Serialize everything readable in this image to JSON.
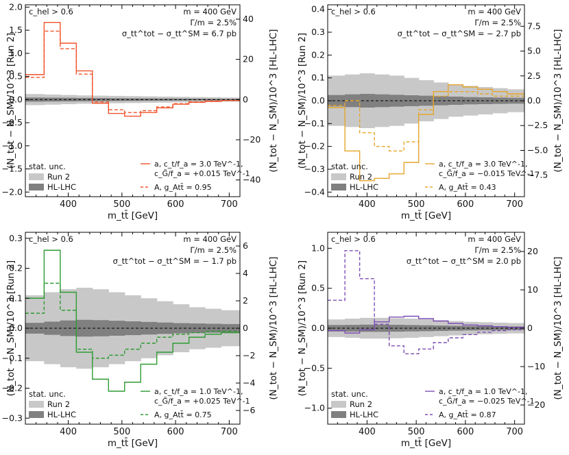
{
  "figure": {
    "x_axis_label": "m_tt̄ [GeV]",
    "y_label_left": "(N_tot − N_SM)/10^3  [Run 2]",
    "y_label_right": "(N_tot − N_SM)/10^3  [HL-LHC]",
    "stat_unc_label": "stat. unc.",
    "run2_label": "Run 2",
    "hllhc_label": "HL-LHC",
    "colors": {
      "run2_band": "#c8c8c8",
      "hllhc_band": "#808080"
    }
  },
  "chart_data": [
    {
      "type": "step",
      "panel": "top-left",
      "cut_label": "c_hel > 0.6",
      "info": [
        "m = 400 GeV",
        "Γ/m = 2.5%",
        "σ_tt^tot − σ_tt^SM = 6.7 pb"
      ],
      "color": "#f0522a",
      "xlim": [
        320,
        720
      ],
      "ylim_left": [
        -2.1,
        2.05
      ],
      "left_ticks": [
        -2.0,
        -1.5,
        -1.0,
        -0.5,
        0.0,
        0.5,
        1.0,
        1.5,
        2.0
      ],
      "ylim_right": [
        -48.3,
        47.15
      ],
      "right_ticks": [
        -40,
        -20,
        0,
        20,
        40
      ],
      "bin_edges": [
        320,
        355,
        385,
        415,
        445,
        475,
        505,
        535,
        565,
        595,
        625,
        655,
        685,
        720
      ],
      "series": [
        {
          "name": "a, c_t/f_a = 3.0 TeV^-1, c_G̃/f_a = +0.015 TeV^-1",
          "style": "solid",
          "values": [
            0.54,
            1.67,
            1.22,
            0.62,
            -0.08,
            -0.3,
            -0.36,
            -0.28,
            -0.18,
            -0.1,
            -0.06,
            -0.04,
            -0.02
          ]
        },
        {
          "name": "A, g_Att̄ = 0.95",
          "style": "dashed",
          "values": [
            0.48,
            1.48,
            1.1,
            0.55,
            -0.05,
            -0.22,
            -0.28,
            -0.24,
            -0.16,
            -0.09,
            -0.05,
            -0.03,
            -0.02
          ]
        }
      ],
      "run2_band": [
        0.12,
        0.11,
        0.1,
        0.09,
        0.085,
        0.08,
        0.075,
        0.07,
        0.065,
        0.06,
        0.055,
        0.05,
        0.045
      ],
      "hllhc_band": [
        0.045,
        0.042,
        0.039,
        0.036,
        0.033,
        0.03,
        0.028,
        0.026,
        0.024,
        0.022,
        0.02,
        0.018,
        0.016
      ],
      "legend_position": "bottom"
    },
    {
      "type": "step",
      "panel": "top-right",
      "cut_label": "c_hel > 0.6",
      "info": [
        "m = 400 GeV",
        "Γ/m = 2.5%",
        "σ_tt^tot − σ_tt^SM = − 2.7 pb"
      ],
      "color": "#e6a52b",
      "xlim": [
        320,
        720
      ],
      "ylim_left": [
        -0.42,
        0.42
      ],
      "left_ticks": [
        -0.4,
        -0.3,
        -0.2,
        -0.1,
        0.0,
        0.1,
        0.2,
        0.3,
        0.4
      ],
      "ylim_right": [
        -9.66,
        9.66
      ],
      "right_ticks": [
        -7.5,
        -5.0,
        -2.5,
        0.0,
        2.5,
        5.0,
        7.5
      ],
      "bin_edges": [
        320,
        355,
        385,
        415,
        445,
        475,
        505,
        535,
        565,
        595,
        625,
        655,
        685,
        720
      ],
      "series": [
        {
          "name": "a, c_t/f_a = 3.0 TeV^-1, c_G̃/f_a = −0.015 TeV^-1",
          "style": "solid",
          "values": [
            -0.03,
            -0.22,
            -0.35,
            -0.34,
            -0.32,
            -0.27,
            -0.06,
            0.04,
            0.07,
            0.06,
            0.05,
            0.04,
            0.03
          ]
        },
        {
          "name": "A, g_Att̄ = 0.43",
          "style": "dashed",
          "values": [
            -0.02,
            0.0,
            -0.14,
            -0.2,
            -0.22,
            -0.18,
            -0.04,
            0.02,
            0.04,
            0.04,
            0.03,
            0.02,
            0.02
          ]
        }
      ],
      "run2_band": [
        0.11,
        0.115,
        0.12,
        0.115,
        0.11,
        0.1,
        0.09,
        0.08,
        0.07,
        0.065,
        0.06,
        0.055,
        0.05
      ],
      "hllhc_band": [
        0.025,
        0.028,
        0.03,
        0.028,
        0.026,
        0.024,
        0.022,
        0.02,
        0.018,
        0.016,
        0.015,
        0.014,
        0.013
      ],
      "legend_position": "bottom"
    },
    {
      "type": "step",
      "panel": "bottom-left",
      "cut_label": "c_hel > 0.6",
      "info": [
        "m = 400 GeV",
        "Γ/m = 2.5%",
        "σ_tt^tot − σ_tt^SM = − 1.7 pb"
      ],
      "color": "#2e9b32",
      "xlim": [
        320,
        720
      ],
      "ylim_left": [
        -0.32,
        0.32
      ],
      "left_ticks": [
        -0.3,
        -0.2,
        -0.1,
        0.0,
        0.1,
        0.2,
        0.3
      ],
      "ylim_right": [
        -7.0,
        7.0
      ],
      "right_ticks": [
        -6,
        -4,
        -2,
        0,
        2,
        4,
        6
      ],
      "bin_edges": [
        320,
        355,
        385,
        415,
        445,
        475,
        505,
        535,
        565,
        595,
        625,
        655,
        685,
        720
      ],
      "series": [
        {
          "name": "a, c_t/f_a = 1.0 TeV^-1, c_G̃/f_a = +0.025 TeV^-1",
          "style": "solid",
          "values": [
            0.1,
            0.26,
            0.12,
            -0.08,
            -0.17,
            -0.21,
            -0.18,
            -0.12,
            -0.08,
            -0.05,
            -0.03,
            -0.02,
            -0.015
          ]
        },
        {
          "name": "A, g_Att̄ = 0.75",
          "style": "dashed",
          "values": [
            0.05,
            0.15,
            0.06,
            -0.07,
            -0.1,
            -0.09,
            -0.07,
            -0.05,
            -0.03,
            -0.02,
            -0.015,
            -0.01,
            -0.01
          ]
        }
      ],
      "run2_band": [
        0.11,
        0.12,
        0.13,
        0.135,
        0.13,
        0.12,
        0.11,
        0.1,
        0.09,
        0.08,
        0.07,
        0.065,
        0.06
      ],
      "hllhc_band": [
        0.018,
        0.022,
        0.026,
        0.028,
        0.027,
        0.025,
        0.023,
        0.021,
        0.019,
        0.017,
        0.016,
        0.015,
        0.014
      ],
      "legend_position": "bottom"
    },
    {
      "type": "step",
      "panel": "bottom-right",
      "cut_label": "c_hel > 0.6",
      "info": [
        "m = 400 GeV",
        "Γ/m = 2.5%",
        "σ_tt^tot − σ_tt^SM = 2.0 pb"
      ],
      "color": "#7c4db3",
      "xlim": [
        320,
        720
      ],
      "ylim_left": [
        -1.2,
        1.2
      ],
      "left_ticks": [
        -1.0,
        -0.5,
        0.0,
        0.5,
        1.0
      ],
      "ylim_right": [
        -25.0,
        25.0
      ],
      "right_ticks": [
        -20,
        -10,
        0,
        10,
        20
      ],
      "bin_edges": [
        320,
        355,
        385,
        415,
        445,
        475,
        505,
        535,
        565,
        595,
        625,
        655,
        685,
        720
      ],
      "series": [
        {
          "name": "a, c_t/f_a = 1.0 TeV^-1, c_G̃/f_a = −0.025 TeV^-1",
          "style": "solid",
          "values": [
            -0.03,
            -0.06,
            -0.02,
            0.08,
            0.14,
            0.15,
            0.12,
            0.09,
            0.06,
            0.04,
            0.03,
            0.02,
            0.01
          ]
        },
        {
          "name": "A, g_Att̄ = 0.87",
          "style": "dashed",
          "values": [
            0.35,
            0.97,
            0.62,
            0.05,
            -0.22,
            -0.32,
            -0.26,
            -0.18,
            -0.12,
            -0.08,
            -0.05,
            -0.03,
            -0.02
          ]
        }
      ],
      "run2_band": [
        0.11,
        0.12,
        0.13,
        0.13,
        0.125,
        0.12,
        0.11,
        0.1,
        0.09,
        0.08,
        0.075,
        0.07,
        0.065
      ],
      "hllhc_band": [
        0.04,
        0.042,
        0.045,
        0.045,
        0.043,
        0.04,
        0.037,
        0.034,
        0.031,
        0.028,
        0.026,
        0.024,
        0.022
      ],
      "legend_position": "bottom"
    }
  ]
}
